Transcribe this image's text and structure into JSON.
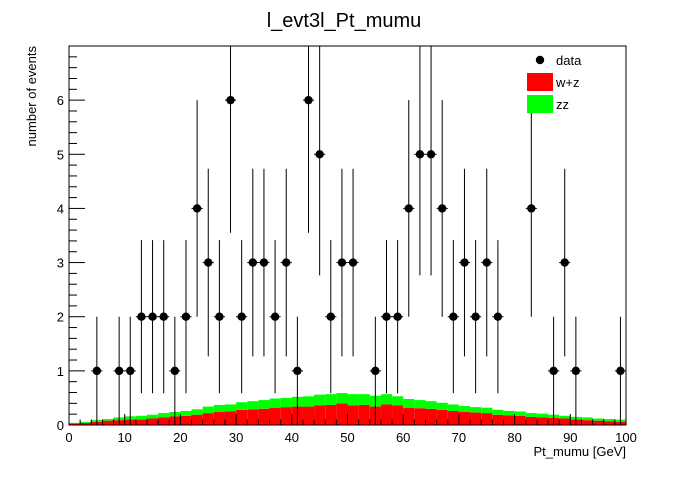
{
  "chart_data": {
    "type": "histogram",
    "title": "l_evt3l_Pt_mumu",
    "xlabel": "Pt_mumu [GeV]",
    "ylabel": "number of events",
    "xlim": [
      0,
      100
    ],
    "ylim": [
      0,
      7
    ],
    "bin_width": 2,
    "x_ticks": [
      0,
      10,
      20,
      30,
      40,
      50,
      60,
      70,
      80,
      90,
      100
    ],
    "y_ticks": [
      0,
      1,
      2,
      3,
      4,
      5,
      6
    ],
    "legend": {
      "placement": "top-right",
      "entries": [
        {
          "label": "data",
          "style": "marker"
        },
        {
          "label": "w+z",
          "color": "#ff0000",
          "style": "fill"
        },
        {
          "label": "zz",
          "color": "#00ff00",
          "style": "fill"
        }
      ]
    },
    "data_points": {
      "name": "data",
      "x": [
        5,
        9,
        11,
        13,
        15,
        17,
        19,
        21,
        23,
        25,
        27,
        29,
        31,
        33,
        35,
        37,
        39,
        41,
        43,
        45,
        47,
        49,
        51,
        55,
        57,
        59,
        61,
        63,
        65,
        67,
        69,
        71,
        73,
        75,
        77,
        83,
        87,
        89,
        91,
        99
      ],
      "y": [
        1,
        1,
        1,
        2,
        2,
        2,
        1,
        2,
        4,
        3,
        2,
        6,
        2,
        3,
        3,
        2,
        3,
        1,
        6,
        5,
        2,
        3,
        3,
        1,
        2,
        2,
        4,
        5,
        5,
        4,
        2,
        3,
        2,
        3,
        2,
        4,
        1,
        3,
        1,
        1
      ]
    },
    "stack": [
      {
        "name": "w+z",
        "color": "#ff0000",
        "values": [
          0.03,
          0.04,
          0.06,
          0.08,
          0.09,
          0.1,
          0.1,
          0.12,
          0.14,
          0.16,
          0.17,
          0.19,
          0.22,
          0.24,
          0.25,
          0.28,
          0.29,
          0.3,
          0.32,
          0.33,
          0.34,
          0.34,
          0.36,
          0.37,
          0.4,
          0.36,
          0.37,
          0.34,
          0.38,
          0.36,
          0.32,
          0.31,
          0.3,
          0.28,
          0.26,
          0.24,
          0.23,
          0.22,
          0.19,
          0.18,
          0.17,
          0.15,
          0.14,
          0.13,
          0.12,
          0.1,
          0.09,
          0.08,
          0.07,
          0.06
        ]
      },
      {
        "name": "zz",
        "color": "#00ff00",
        "values": [
          0.01,
          0.02,
          0.03,
          0.03,
          0.05,
          0.06,
          0.07,
          0.07,
          0.08,
          0.08,
          0.09,
          0.1,
          0.12,
          0.13,
          0.13,
          0.14,
          0.15,
          0.16,
          0.17,
          0.17,
          0.18,
          0.19,
          0.2,
          0.2,
          0.19,
          0.21,
          0.2,
          0.2,
          0.19,
          0.17,
          0.16,
          0.15,
          0.14,
          0.13,
          0.12,
          0.11,
          0.1,
          0.1,
          0.09,
          0.08,
          0.08,
          0.07,
          0.07,
          0.06,
          0.05,
          0.05,
          0.05,
          0.04,
          0.04,
          0.04
        ]
      }
    ]
  }
}
